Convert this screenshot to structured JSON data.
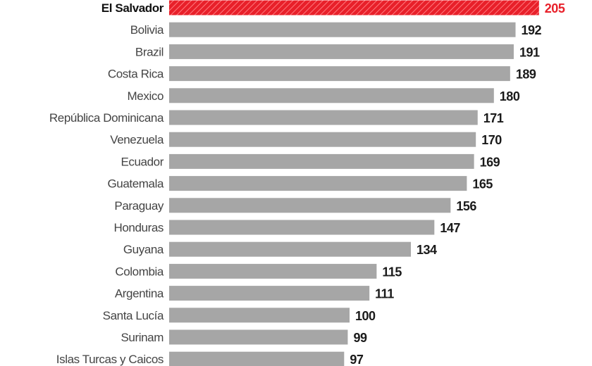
{
  "chart_data": {
    "type": "bar",
    "orientation": "horizontal",
    "categories": [
      "El Salvador",
      "Bolivia",
      "Brazil",
      "Costa Rica",
      "Mexico",
      "República Dominicana",
      "Venezuela",
      "Ecuador",
      "Guatemala",
      "Paraguay",
      "Honduras",
      "Guyana",
      "Colombia",
      "Argentina",
      "Santa Lucía",
      "Surinam",
      "Islas Turcas y Caicos"
    ],
    "values": [
      205,
      192,
      191,
      189,
      180,
      171,
      170,
      169,
      165,
      156,
      147,
      134,
      115,
      111,
      100,
      99,
      97
    ],
    "highlight": "El Salvador",
    "colors": {
      "bar": "#a6a6a6",
      "highlight": "#e8202a",
      "highlight_hatch": "#ff7a7f"
    },
    "grid": false,
    "legend": "none"
  }
}
